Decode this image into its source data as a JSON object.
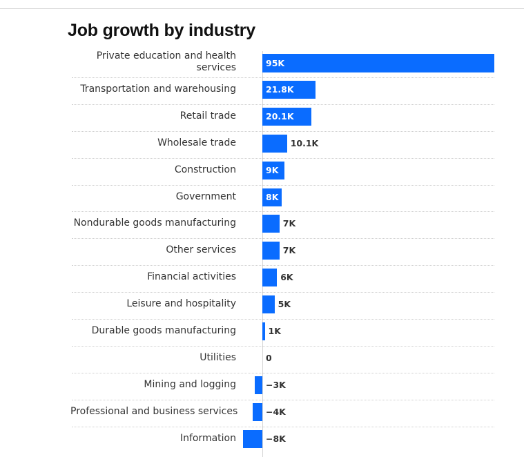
{
  "chart_data": {
    "type": "bar",
    "orientation": "horizontal",
    "title": "Job growth by industry",
    "xlabel": "",
    "ylabel": "",
    "unit": "K",
    "grid": false,
    "legend": null,
    "xlim": [
      -8,
      95
    ],
    "bar_color": "#0a6cff",
    "categories": [
      "Private education and health services",
      "Transportation and warehousing",
      "Retail trade",
      "Wholesale trade",
      "Construction",
      "Government",
      "Nondurable goods manufacturing",
      "Other services",
      "Financial activities",
      "Leisure and hospitality",
      "Durable goods manufacturing",
      "Utilities",
      "Mining and logging",
      "Professional and business services",
      "Information"
    ],
    "values": [
      95,
      21.8,
      20.1,
      10.1,
      9,
      8,
      7,
      7,
      6,
      5,
      1,
      0,
      -3,
      -4,
      -8
    ],
    "value_labels": [
      "95K",
      "21.8K",
      "20.1K",
      "10.1K",
      "9K",
      "8K",
      "7K",
      "7K",
      "6K",
      "5K",
      "1K",
      "0",
      "−3K",
      "−4K",
      "−8K"
    ],
    "label_inside": [
      true,
      true,
      true,
      false,
      true,
      true,
      false,
      false,
      false,
      false,
      false,
      false,
      false,
      false,
      false
    ]
  }
}
